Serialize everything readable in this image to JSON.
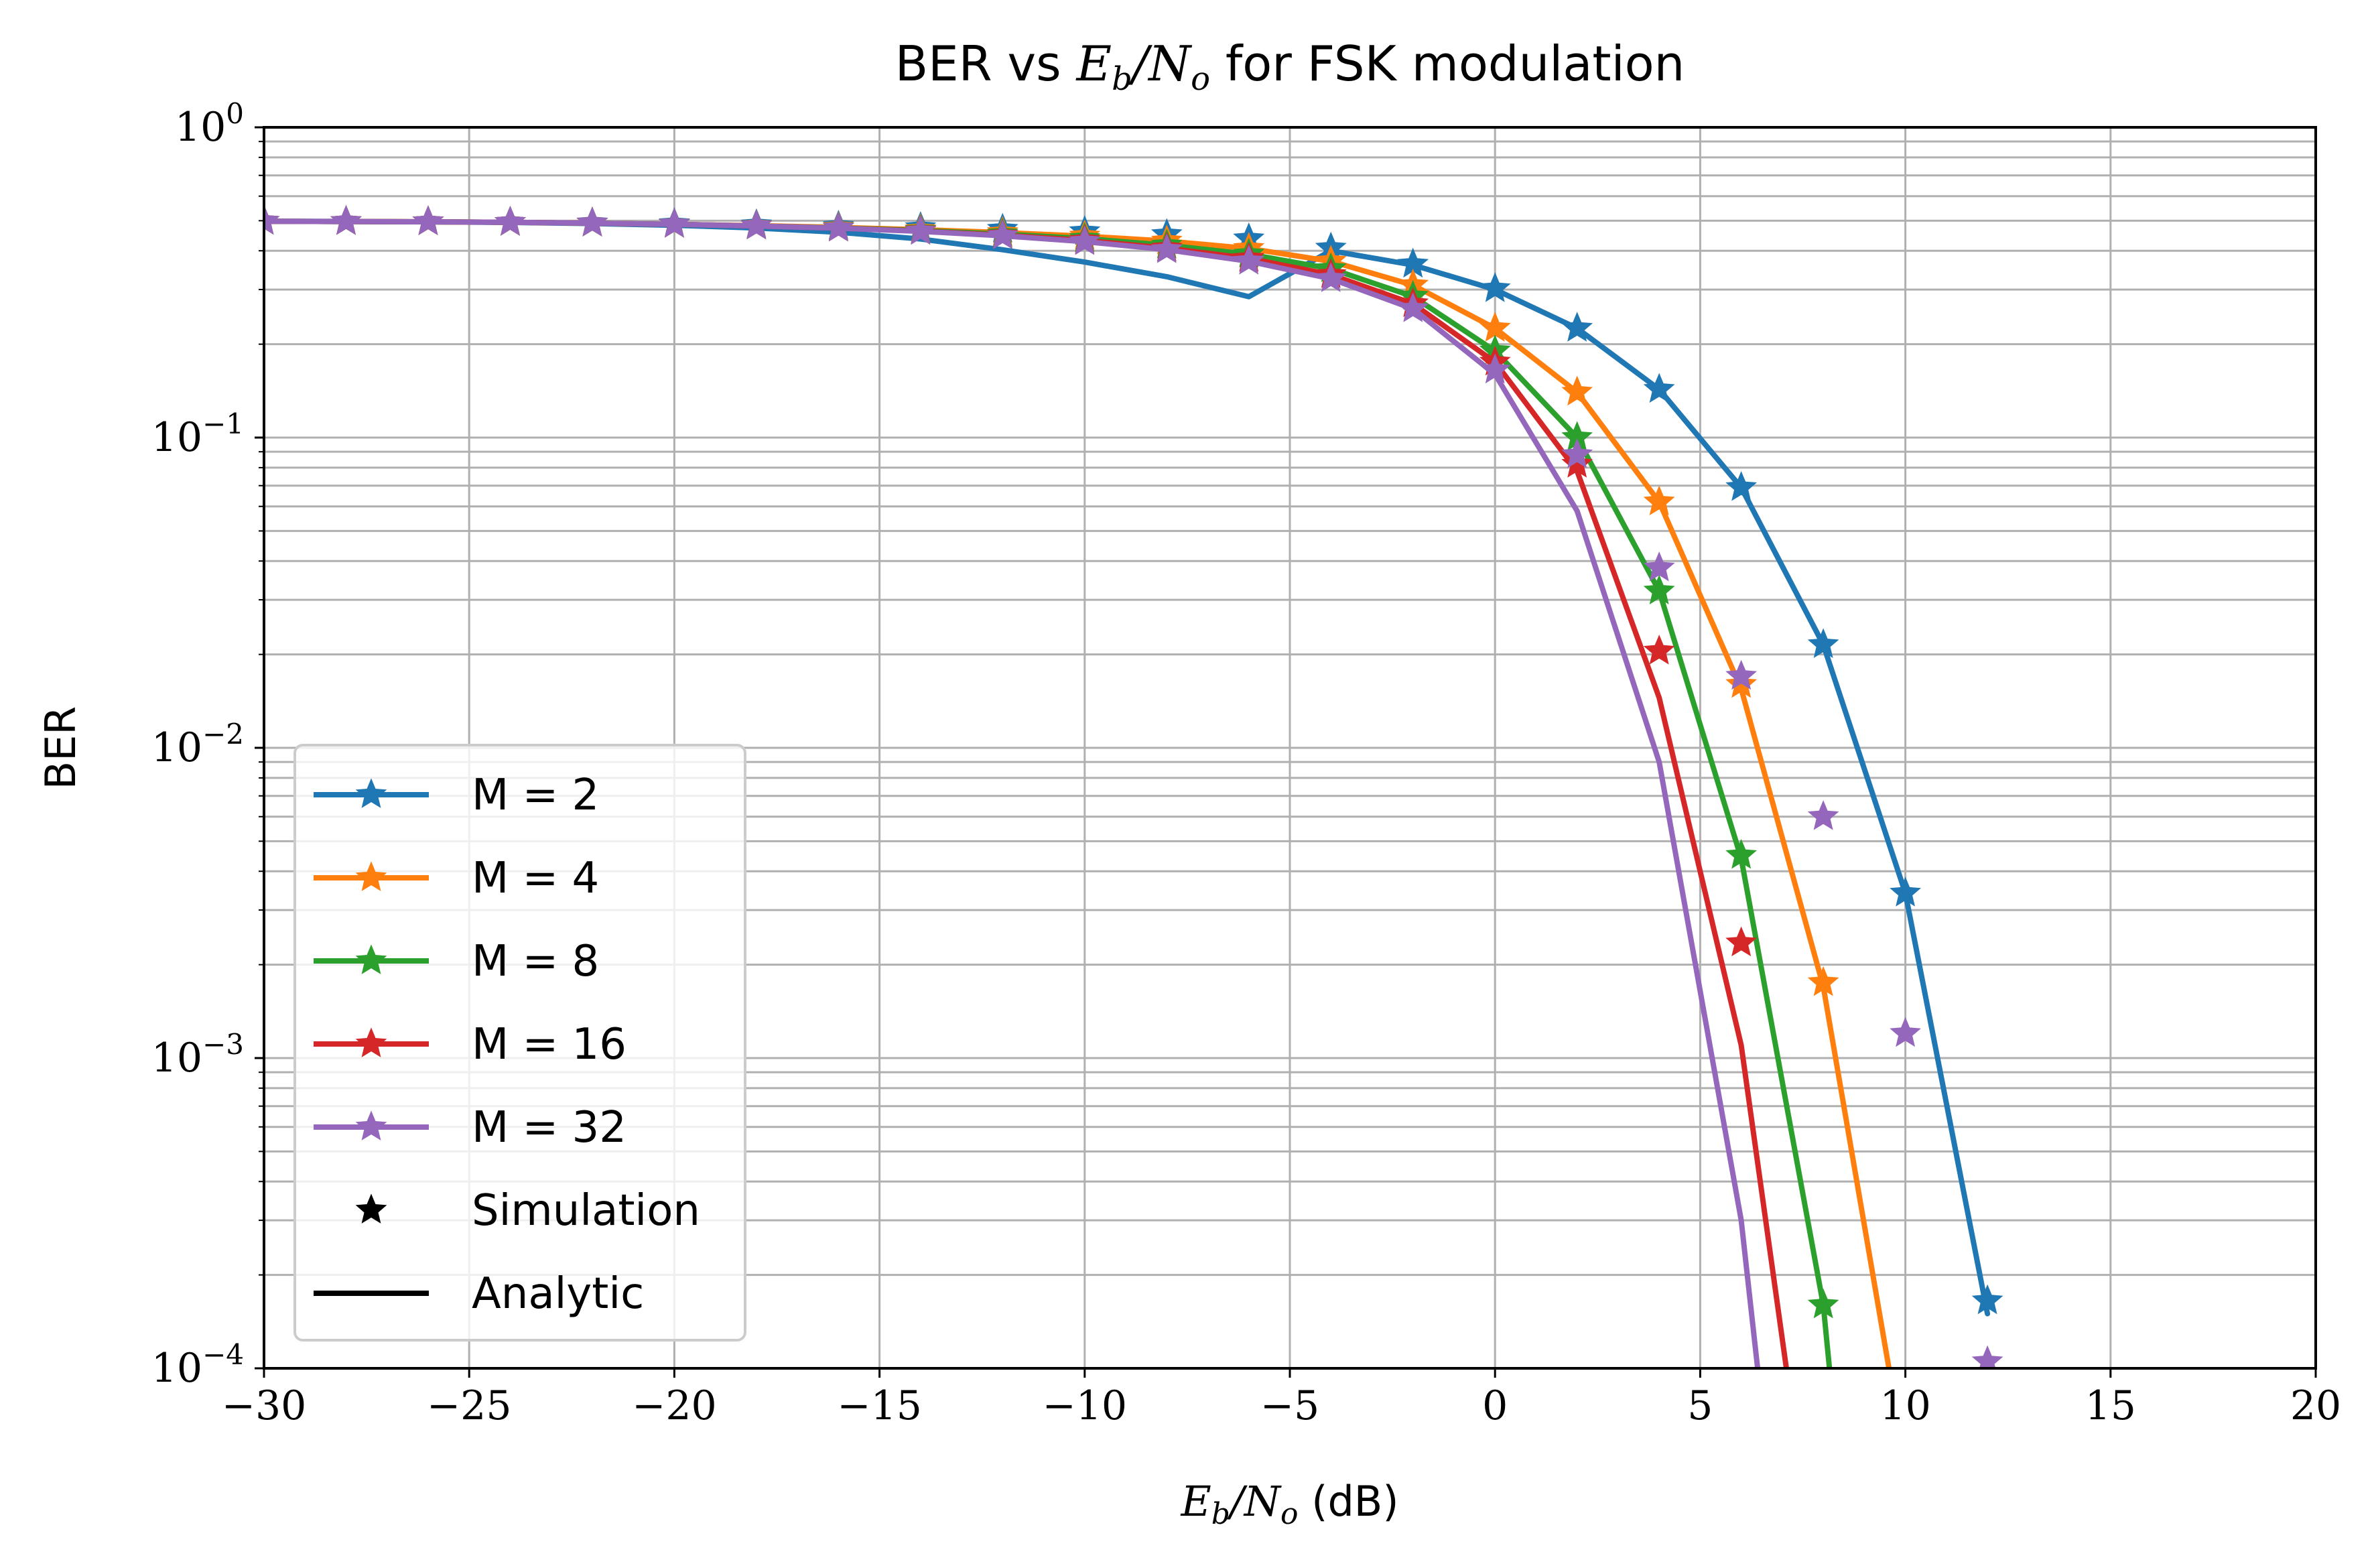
{
  "chart_data": {
    "type": "line",
    "title_parts": {
      "pre": "BER vs ",
      "math_E": "E",
      "math_b": "b",
      "math_slash": "/",
      "math_N": "N",
      "math_o": "o",
      "post": " for FSK modulation"
    },
    "xlabel_parts": {
      "math_E": "E",
      "math_b": "b",
      "math_slash": "/",
      "math_N": "N",
      "math_o": "o",
      "post": " (dB)"
    },
    "ylabel": "BER",
    "xlim": [
      -30,
      20
    ],
    "ylim": [
      0.0001,
      1
    ],
    "yscale": "log",
    "grid": true,
    "legend_position": "lower-left",
    "x_ticks": [
      {
        "value": -30,
        "label": "−30"
      },
      {
        "value": -25,
        "label": "−25"
      },
      {
        "value": -20,
        "label": "−20"
      },
      {
        "value": -15,
        "label": "−15"
      },
      {
        "value": -10,
        "label": "−10"
      },
      {
        "value": -5,
        "label": "−5"
      },
      {
        "value": 0,
        "label": "0"
      },
      {
        "value": 5,
        "label": "5"
      },
      {
        "value": 10,
        "label": "10"
      },
      {
        "value": 15,
        "label": "15"
      },
      {
        "value": 20,
        "label": "20"
      }
    ],
    "y_ticks": [
      {
        "value": 1,
        "base": "10",
        "exp": "0"
      },
      {
        "value": 0.1,
        "base": "10",
        "exp": "−1"
      },
      {
        "value": 0.01,
        "base": "10",
        "exp": "−2"
      },
      {
        "value": 0.001,
        "base": "10",
        "exp": "−3"
      },
      {
        "value": 0.0001,
        "base": "10",
        "exp": "−4"
      }
    ],
    "series": [
      {
        "name": "M = 2",
        "color": "#1f77b4",
        "analytic": {
          "x": [
            -30,
            -28,
            -26,
            -24,
            -22,
            -20,
            -18,
            -16,
            -14,
            -12,
            -10,
            -8,
            -6,
            -4,
            -2,
            0,
            2,
            4,
            6,
            8,
            10,
            12
          ],
          "y": [
            0.4983,
            0.4974,
            0.4958,
            0.4934,
            0.4895,
            0.4834,
            0.4738,
            0.4589,
            0.4365,
            0.4031,
            0.3679,
            0.33,
            0.2846,
            0.4,
            0.36,
            0.3,
            0.225,
            0.143,
            0.069,
            0.0215,
            0.0034,
            0.00015
          ]
        },
        "simulation": {
          "x": [
            -30,
            -28,
            -26,
            -24,
            -22,
            -20,
            -18,
            -16,
            -14,
            -12,
            -10,
            -8,
            -6,
            -4,
            -2,
            0,
            2,
            4,
            6,
            8,
            10,
            12
          ],
          "y": [
            0.498,
            0.497,
            0.496,
            0.494,
            0.492,
            0.489,
            0.485,
            0.48,
            0.475,
            0.469,
            0.461,
            0.451,
            0.437,
            0.408,
            0.362,
            0.302,
            0.225,
            0.143,
            0.069,
            0.0215,
            0.0034,
            0.000165
          ]
        }
      },
      {
        "name": "M = 4",
        "color": "#ff7f0e",
        "analytic": {
          "x": [
            -30,
            -28,
            -26,
            -24,
            -22,
            -20,
            -18,
            -16,
            -14,
            -12,
            -10,
            -8,
            -6,
            -4,
            -2,
            0,
            2,
            4,
            6,
            8,
            9.6
          ],
          "y": [
            0.498,
            0.497,
            0.496,
            0.494,
            0.491,
            0.487,
            0.482,
            0.476,
            0.468,
            0.458,
            0.446,
            0.43,
            0.407,
            0.37,
            0.31,
            0.225,
            0.14,
            0.062,
            0.0155,
            0.0017,
            0.0001
          ]
        },
        "simulation": {
          "x": [
            -30,
            -28,
            -26,
            -24,
            -22,
            -20,
            -18,
            -16,
            -14,
            -12,
            -10,
            -8,
            -6,
            -4,
            -2,
            0,
            2,
            4,
            6,
            8
          ],
          "y": [
            0.498,
            0.497,
            0.496,
            0.494,
            0.491,
            0.487,
            0.482,
            0.476,
            0.468,
            0.458,
            0.446,
            0.43,
            0.407,
            0.37,
            0.31,
            0.225,
            0.14,
            0.062,
            0.016,
            0.00175
          ]
        }
      },
      {
        "name": "M = 8",
        "color": "#2ca02c",
        "analytic": {
          "x": [
            -30,
            -28,
            -26,
            -24,
            -22,
            -20,
            -18,
            -16,
            -14,
            -12,
            -10,
            -8,
            -6,
            -4,
            -2,
            0,
            2,
            4,
            6,
            8,
            8.15
          ],
          "y": [
            0.498,
            0.497,
            0.496,
            0.494,
            0.491,
            0.487,
            0.481,
            0.474,
            0.465,
            0.453,
            0.438,
            0.417,
            0.39,
            0.35,
            0.285,
            0.19,
            0.1,
            0.032,
            0.0044,
            0.00016,
            0.0001
          ]
        },
        "simulation": {
          "x": [
            -30,
            -28,
            -26,
            -24,
            -22,
            -20,
            -18,
            -16,
            -14,
            -12,
            -10,
            -8,
            -6,
            -4,
            -2,
            0,
            2,
            4,
            6,
            8
          ],
          "y": [
            0.498,
            0.497,
            0.496,
            0.494,
            0.491,
            0.487,
            0.481,
            0.474,
            0.465,
            0.453,
            0.438,
            0.417,
            0.39,
            0.35,
            0.285,
            0.19,
            0.1,
            0.032,
            0.0045,
            0.00016
          ]
        }
      },
      {
        "name": "M = 16",
        "color": "#d62728",
        "analytic": {
          "x": [
            -30,
            -28,
            -26,
            -24,
            -22,
            -20,
            -18,
            -16,
            -14,
            -12,
            -10,
            -8,
            -6,
            -4,
            -2,
            0,
            2,
            4,
            6,
            7.1
          ],
          "y": [
            0.498,
            0.497,
            0.496,
            0.494,
            0.491,
            0.487,
            0.481,
            0.473,
            0.463,
            0.449,
            0.432,
            0.408,
            0.378,
            0.335,
            0.27,
            0.175,
            0.078,
            0.0145,
            0.0011,
            0.0001
          ]
        },
        "simulation": {
          "x": [
            -30,
            -28,
            -26,
            -24,
            -22,
            -20,
            -18,
            -16,
            -14,
            -12,
            -10,
            -8,
            -6,
            -4,
            -2,
            0,
            2,
            4,
            6
          ],
          "y": [
            0.498,
            0.497,
            0.496,
            0.494,
            0.491,
            0.487,
            0.481,
            0.473,
            0.463,
            0.449,
            0.432,
            0.408,
            0.378,
            0.335,
            0.27,
            0.175,
            0.082,
            0.0205,
            0.00235
          ]
        }
      },
      {
        "name": "M = 32",
        "color": "#9467bd",
        "analytic": {
          "x": [
            -30,
            -28,
            -26,
            -24,
            -22,
            -20,
            -18,
            -16,
            -14,
            -12,
            -10,
            -8,
            -6,
            -4,
            -2,
            0,
            2,
            4,
            6,
            6.4
          ],
          "y": [
            0.498,
            0.497,
            0.496,
            0.494,
            0.491,
            0.487,
            0.481,
            0.473,
            0.462,
            0.447,
            0.428,
            0.403,
            0.37,
            0.325,
            0.26,
            0.16,
            0.058,
            0.009,
            0.0003,
            0.0001
          ]
        },
        "simulation": {
          "x": [
            -30,
            -28,
            -26,
            -24,
            -22,
            -20,
            -18,
            -16,
            -14,
            -12,
            -10,
            -8,
            -6,
            -4,
            -2,
            0,
            2,
            4,
            6,
            8,
            10,
            12
          ],
          "y": [
            0.498,
            0.497,
            0.496,
            0.494,
            0.491,
            0.487,
            0.481,
            0.473,
            0.462,
            0.447,
            0.428,
            0.403,
            0.37,
            0.325,
            0.26,
            0.165,
            0.088,
            0.038,
            0.017,
            0.006,
            0.0012,
            0.000105
          ]
        }
      }
    ],
    "legend": {
      "entries": [
        "M = 2",
        "M = 4",
        "M = 8",
        "M = 16",
        "M = 32"
      ],
      "simulation_label": "Simulation",
      "analytic_label": "Analytic"
    }
  }
}
